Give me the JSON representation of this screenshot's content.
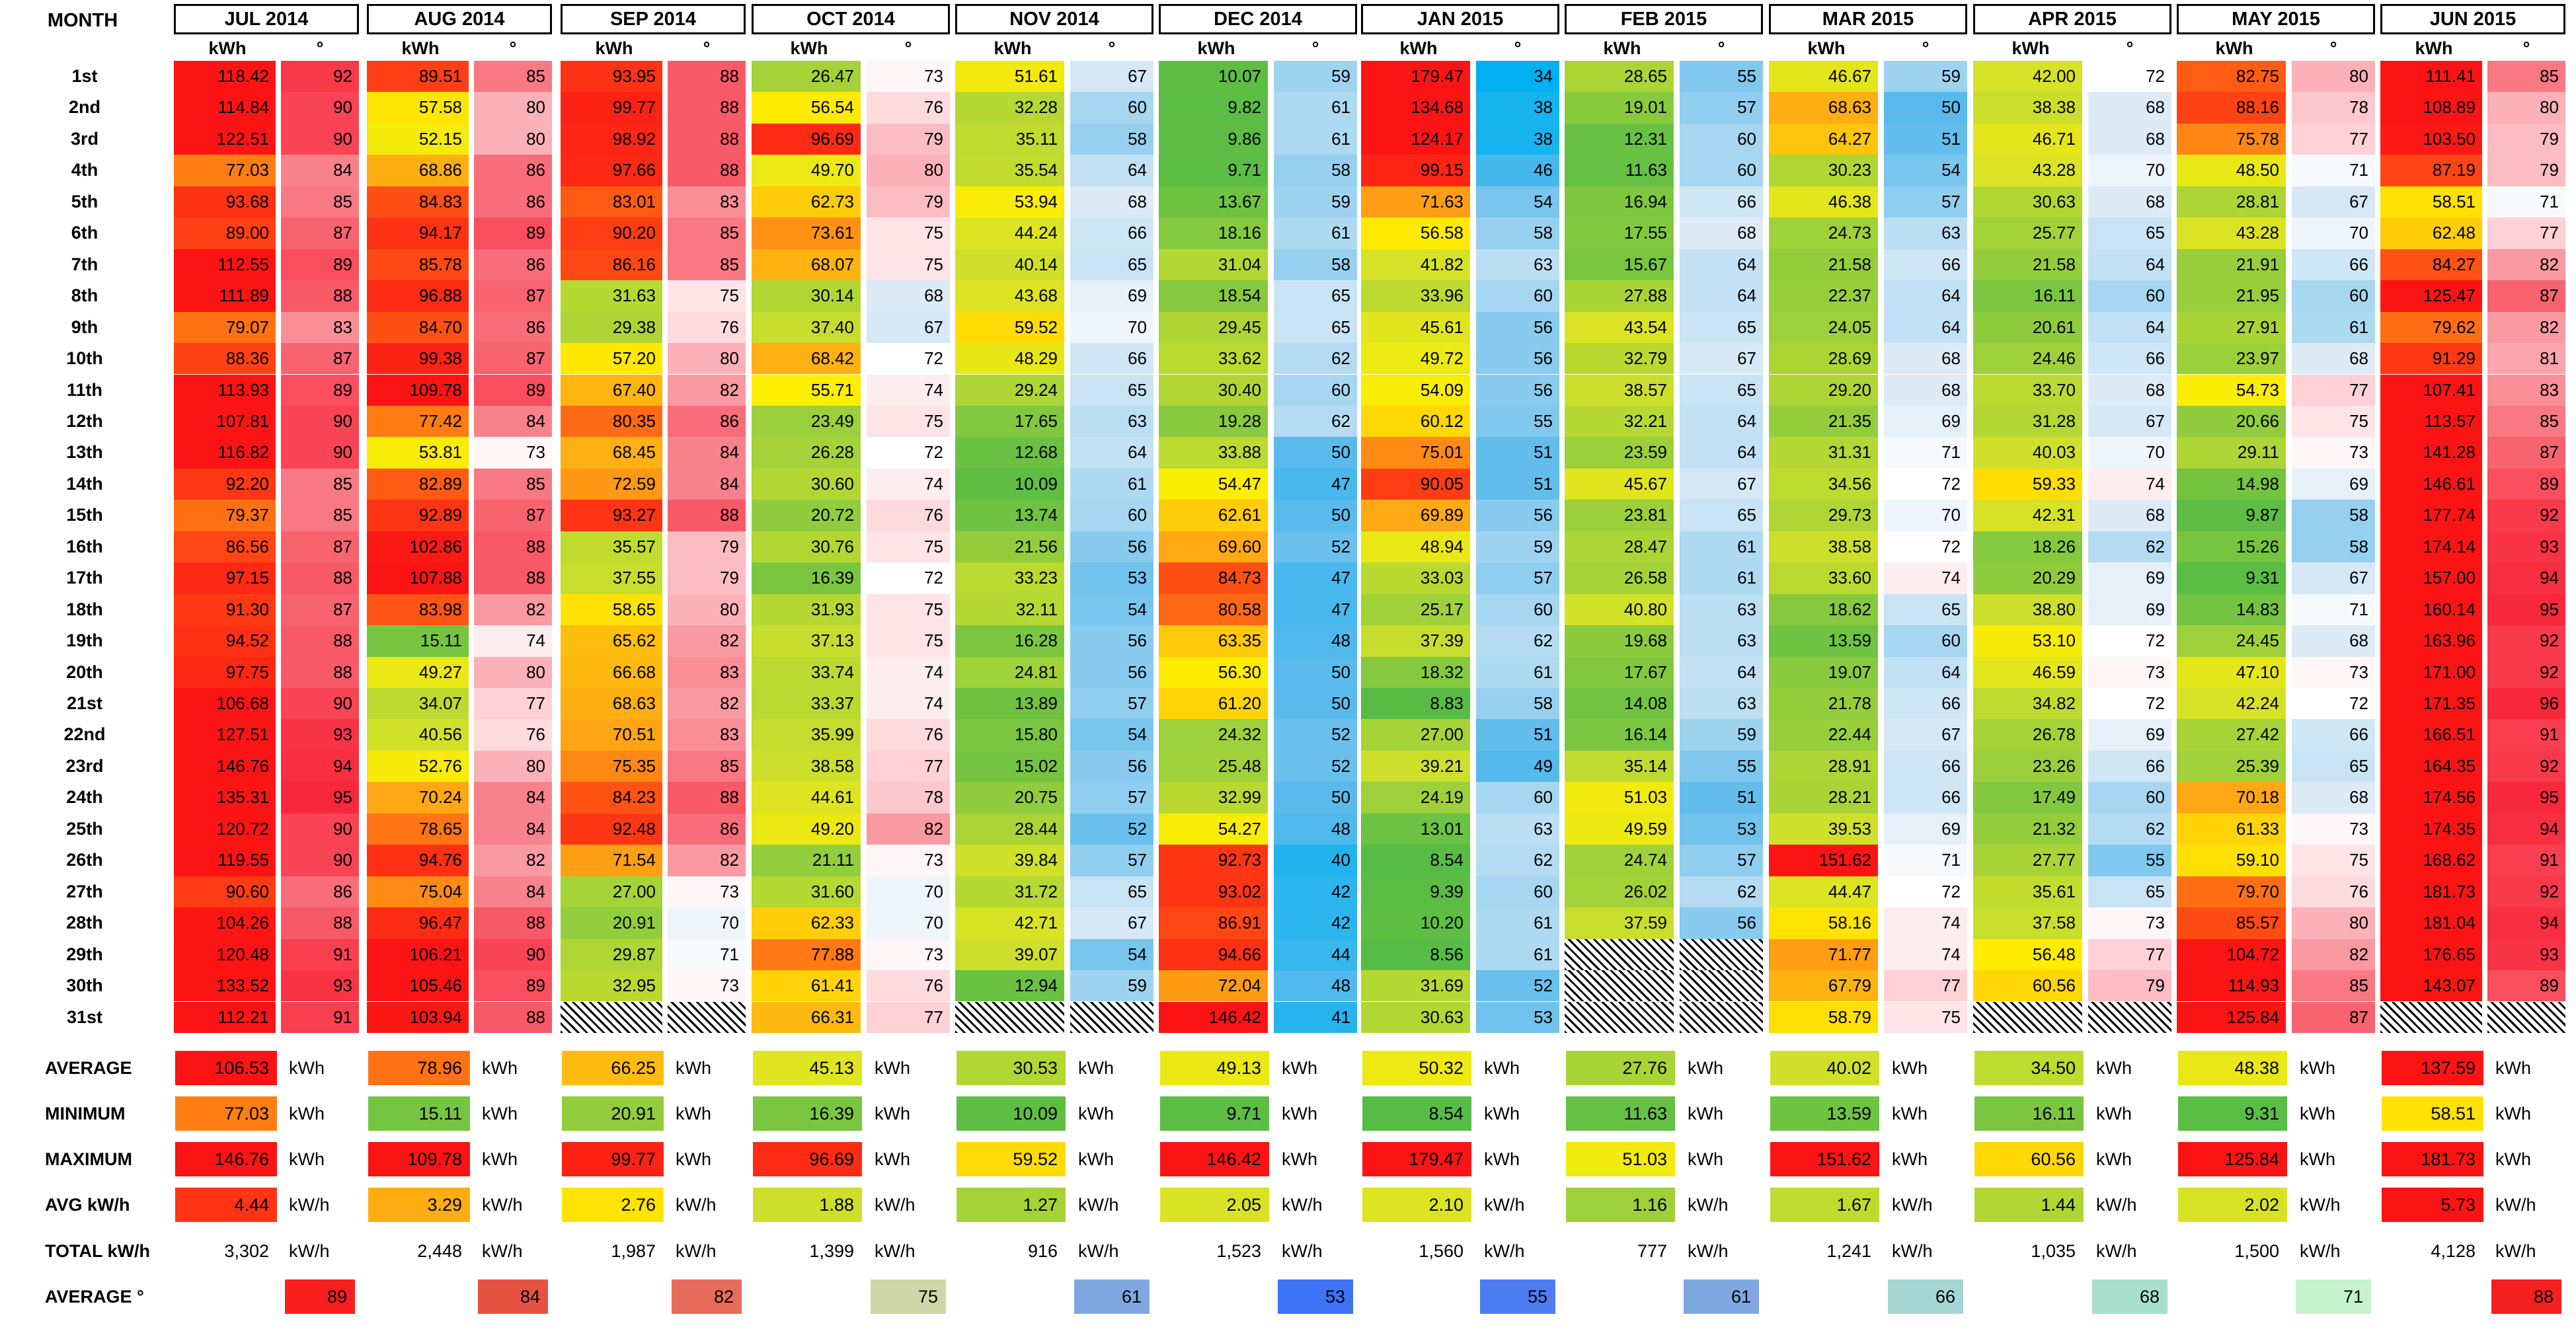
{
  "header": {
    "month_label": "MONTH",
    "kwh_label": "kWh",
    "degree_label": "°"
  },
  "days": [
    "1st",
    "2nd",
    "3rd",
    "4th",
    "5th",
    "6th",
    "7th",
    "8th",
    "9th",
    "10th",
    "11th",
    "12th",
    "13th",
    "14th",
    "15th",
    "16th",
    "17th",
    "18th",
    "19th",
    "20th",
    "21st",
    "22nd",
    "23rd",
    "24th",
    "25th",
    "26th",
    "27th",
    "28th",
    "29th",
    "30th",
    "31st"
  ],
  "months": [
    {
      "name": "JUL 2014",
      "kwh": [
        "118.42",
        "114.84",
        "122.51",
        "77.03",
        "93.68",
        "89.00",
        "112.55",
        "111.89",
        "79.07",
        "88.36",
        "113.93",
        "107.81",
        "116.82",
        "92.20",
        "79.37",
        "86.56",
        "97.15",
        "91.30",
        "94.52",
        "97.75",
        "106.68",
        "127.51",
        "146.76",
        "135.31",
        "120.72",
        "119.55",
        "90.60",
        "104.26",
        "120.48",
        "133.52",
        "112.21"
      ],
      "temp": [
        "92",
        "90",
        "90",
        "84",
        "85",
        "87",
        "89",
        "88",
        "83",
        "87",
        "89",
        "90",
        "90",
        "85",
        "85",
        "87",
        "88",
        "87",
        "88",
        "88",
        "90",
        "93",
        "94",
        "95",
        "90",
        "90",
        "86",
        "88",
        "91",
        "93",
        "91"
      ]
    },
    {
      "name": "AUG 2014",
      "kwh": [
        "89.51",
        "57.58",
        "52.15",
        "68.86",
        "84.83",
        "94.17",
        "85.78",
        "96.88",
        "84.70",
        "99.38",
        "109.78",
        "77.42",
        "53.81",
        "82.89",
        "92.89",
        "102.86",
        "107.88",
        "83.98",
        "15.11",
        "49.27",
        "34.07",
        "40.56",
        "52.76",
        "70.24",
        "78.65",
        "94.76",
        "75.04",
        "96.47",
        "106.21",
        "105.46",
        "103.94"
      ],
      "temp": [
        "85",
        "80",
        "80",
        "86",
        "86",
        "89",
        "86",
        "87",
        "86",
        "87",
        "89",
        "84",
        "73",
        "85",
        "87",
        "88",
        "88",
        "82",
        "74",
        "80",
        "77",
        "76",
        "80",
        "84",
        "84",
        "82",
        "84",
        "88",
        "90",
        "89",
        "88"
      ]
    },
    {
      "name": "SEP 2014",
      "kwh": [
        "93.95",
        "99.77",
        "98.92",
        "97.66",
        "83.01",
        "90.20",
        "86.16",
        "31.63",
        "29.38",
        "57.20",
        "67.40",
        "80.35",
        "68.45",
        "72.59",
        "93.27",
        "35.57",
        "37.55",
        "58.65",
        "65.62",
        "66.68",
        "68.63",
        "70.51",
        "75.35",
        "84.23",
        "92.48",
        "71.54",
        "27.00",
        "20.91",
        "29.87",
        "32.95",
        ""
      ],
      "temp": [
        "88",
        "88",
        "88",
        "88",
        "83",
        "85",
        "85",
        "75",
        "76",
        "80",
        "82",
        "86",
        "84",
        "84",
        "88",
        "79",
        "79",
        "80",
        "82",
        "83",
        "82",
        "83",
        "85",
        "88",
        "86",
        "82",
        "73",
        "70",
        "71",
        "73",
        ""
      ]
    },
    {
      "name": "OCT 2014",
      "kwh": [
        "26.47",
        "56.54",
        "96.69",
        "49.70",
        "62.73",
        "73.61",
        "68.07",
        "30.14",
        "37.40",
        "68.42",
        "55.71",
        "23.49",
        "26.28",
        "30.60",
        "20.72",
        "30.76",
        "16.39",
        "31.93",
        "37.13",
        "33.74",
        "33.37",
        "35.99",
        "38.58",
        "44.61",
        "49.20",
        "21.11",
        "31.60",
        "62.33",
        "77.88",
        "61.41",
        "66.31"
      ],
      "temp": [
        "73",
        "76",
        "79",
        "80",
        "79",
        "75",
        "75",
        "68",
        "67",
        "72",
        "74",
        "75",
        "72",
        "74",
        "76",
        "75",
        "72",
        "75",
        "75",
        "74",
        "74",
        "76",
        "77",
        "78",
        "82",
        "73",
        "70",
        "70",
        "73",
        "76",
        "77"
      ]
    },
    {
      "name": "NOV 2014",
      "kwh": [
        "51.61",
        "32.28",
        "35.11",
        "35.54",
        "53.94",
        "44.24",
        "40.14",
        "43.68",
        "59.52",
        "48.29",
        "29.24",
        "17.65",
        "12.68",
        "10.09",
        "13.74",
        "21.56",
        "33.23",
        "32.11",
        "16.28",
        "24.81",
        "13.89",
        "15.80",
        "15.02",
        "20.75",
        "28.44",
        "39.84",
        "31.72",
        "42.71",
        "39.07",
        "12.94",
        ""
      ],
      "temp": [
        "67",
        "60",
        "58",
        "64",
        "68",
        "66",
        "65",
        "69",
        "70",
        "66",
        "65",
        "63",
        "64",
        "61",
        "60",
        "56",
        "53",
        "54",
        "56",
        "56",
        "57",
        "54",
        "56",
        "57",
        "52",
        "57",
        "65",
        "67",
        "54",
        "59",
        ""
      ]
    },
    {
      "name": "DEC 2014",
      "kwh": [
        "10.07",
        "9.82",
        "9.86",
        "9.71",
        "13.67",
        "18.16",
        "31.04",
        "18.54",
        "29.45",
        "33.62",
        "30.40",
        "19.28",
        "33.88",
        "54.47",
        "62.61",
        "69.60",
        "84.73",
        "80.58",
        "63.35",
        "56.30",
        "61.20",
        "24.32",
        "25.48",
        "32.99",
        "54.27",
        "92.73",
        "93.02",
        "86.91",
        "94.66",
        "72.04",
        "146.42"
      ],
      "temp": [
        "59",
        "61",
        "61",
        "58",
        "59",
        "61",
        "58",
        "65",
        "65",
        "62",
        "60",
        "62",
        "50",
        "47",
        "50",
        "52",
        "47",
        "47",
        "48",
        "50",
        "50",
        "52",
        "52",
        "50",
        "48",
        "40",
        "42",
        "42",
        "44",
        "48",
        "41"
      ]
    },
    {
      "name": "JAN 2015",
      "kwh": [
        "179.47",
        "134.68",
        "124.17",
        "99.15",
        "71.63",
        "56.58",
        "41.82",
        "33.96",
        "45.61",
        "49.72",
        "54.09",
        "60.12",
        "75.01",
        "90.05",
        "69.89",
        "48.94",
        "33.03",
        "25.17",
        "37.39",
        "18.32",
        "8.83",
        "27.00",
        "39.21",
        "24.19",
        "13.01",
        "8.54",
        "9.39",
        "10.20",
        "8.56",
        "31.69",
        "30.63"
      ],
      "temp": [
        "34",
        "38",
        "38",
        "46",
        "54",
        "58",
        "63",
        "60",
        "56",
        "56",
        "56",
        "55",
        "51",
        "51",
        "56",
        "59",
        "57",
        "60",
        "62",
        "61",
        "58",
        "51",
        "49",
        "60",
        "63",
        "62",
        "60",
        "61",
        "61",
        "52",
        "53"
      ]
    },
    {
      "name": "FEB 2015",
      "kwh": [
        "28.65",
        "19.01",
        "12.31",
        "11.63",
        "16.94",
        "17.55",
        "15.67",
        "27.88",
        "43.54",
        "32.79",
        "38.57",
        "32.21",
        "23.59",
        "45.67",
        "23.81",
        "28.47",
        "26.58",
        "40.80",
        "19.68",
        "17.67",
        "14.08",
        "16.14",
        "35.14",
        "51.03",
        "49.59",
        "24.74",
        "26.02",
        "37.59",
        "",
        "",
        ""
      ],
      "temp": [
        "55",
        "57",
        "60",
        "60",
        "66",
        "68",
        "64",
        "64",
        "65",
        "67",
        "65",
        "64",
        "64",
        "67",
        "65",
        "61",
        "61",
        "63",
        "63",
        "64",
        "63",
        "59",
        "55",
        "51",
        "53",
        "57",
        "62",
        "56",
        "",
        "",
        ""
      ]
    },
    {
      "name": "MAR 2015",
      "kwh": [
        "46.67",
        "68.63",
        "64.27",
        "30.23",
        "46.38",
        "24.73",
        "21.58",
        "22.37",
        "24.05",
        "28.69",
        "29.20",
        "21.35",
        "31.31",
        "34.56",
        "29.73",
        "38.58",
        "33.60",
        "18.62",
        "13.59",
        "19.07",
        "21.78",
        "22.44",
        "28.91",
        "28.21",
        "39.53",
        "151.62",
        "44.47",
        "58.16",
        "71.77",
        "67.79",
        "58.79"
      ],
      "temp": [
        "59",
        "50",
        "51",
        "54",
        "57",
        "63",
        "66",
        "64",
        "64",
        "68",
        "68",
        "69",
        "71",
        "72",
        "70",
        "72",
        "74",
        "65",
        "60",
        "64",
        "66",
        "67",
        "66",
        "66",
        "69",
        "71",
        "72",
        "74",
        "74",
        "77",
        "75"
      ]
    },
    {
      "name": "APR 2015",
      "kwh": [
        "42.00",
        "38.38",
        "46.71",
        "43.28",
        "30.63",
        "25.77",
        "21.58",
        "16.11",
        "20.61",
        "24.46",
        "33.70",
        "31.28",
        "40.03",
        "59.33",
        "42.31",
        "18.26",
        "20.29",
        "38.80",
        "53.10",
        "46.59",
        "34.82",
        "26.78",
        "23.26",
        "17.49",
        "21.32",
        "27.77",
        "35.61",
        "37.58",
        "56.48",
        "60.56",
        ""
      ],
      "temp": [
        "72",
        "68",
        "68",
        "70",
        "68",
        "65",
        "64",
        "60",
        "64",
        "66",
        "68",
        "67",
        "70",
        "74",
        "68",
        "62",
        "69",
        "69",
        "72",
        "73",
        "72",
        "69",
        "66",
        "60",
        "62",
        "55",
        "65",
        "73",
        "77",
        "79",
        ""
      ]
    },
    {
      "name": "MAY 2015",
      "kwh": [
        "82.75",
        "88.16",
        "75.78",
        "48.50",
        "28.81",
        "43.28",
        "21.91",
        "21.95",
        "27.91",
        "23.97",
        "54.73",
        "20.66",
        "29.11",
        "14.98",
        "9.87",
        "15.26",
        "9.31",
        "14.83",
        "24.45",
        "47.10",
        "42.24",
        "27.42",
        "25.39",
        "70.18",
        "61.33",
        "59.10",
        "79.70",
        "85.57",
        "104.72",
        "114.93",
        "125.84"
      ],
      "temp": [
        "80",
        "78",
        "77",
        "71",
        "67",
        "70",
        "66",
        "60",
        "61",
        "68",
        "77",
        "75",
        "73",
        "69",
        "58",
        "58",
        "67",
        "71",
        "68",
        "73",
        "72",
        "66",
        "65",
        "68",
        "73",
        "75",
        "76",
        "80",
        "82",
        "85",
        "87"
      ]
    },
    {
      "name": "JUN 2015",
      "kwh": [
        "111.41",
        "108.89",
        "103.50",
        "87.19",
        "58.51",
        "62.48",
        "84.27",
        "125.47",
        "79.62",
        "91.29",
        "107.41",
        "113.57",
        "141.28",
        "146.61",
        "177.74",
        "174.14",
        "157.00",
        "160.14",
        "163.96",
        "171.00",
        "171.35",
        "166.51",
        "164.35",
        "174.56",
        "174.35",
        "168.62",
        "181.73",
        "181.04",
        "176.65",
        "143.07",
        ""
      ],
      "temp": [
        "85",
        "80",
        "79",
        "79",
        "71",
        "77",
        "82",
        "87",
        "82",
        "81",
        "83",
        "85",
        "87",
        "89",
        "92",
        "93",
        "94",
        "95",
        "92",
        "92",
        "96",
        "91",
        "92",
        "95",
        "94",
        "91",
        "92",
        "94",
        "93",
        "89",
        ""
      ]
    }
  ],
  "summary": {
    "labels": [
      "AVERAGE",
      "MINIMUM",
      "MAXIMUM",
      "AVG kW/h",
      "TOTAL kW/h",
      "AVERAGE °"
    ],
    "unit_kwh": "kWh",
    "unit_kwh_h": "kW/h",
    "average": [
      "106.53",
      "78.96",
      "66.25",
      "45.13",
      "30.53",
      "49.13",
      "50.32",
      "27.76",
      "40.02",
      "34.50",
      "48.38",
      "137.59"
    ],
    "minimum": [
      "77.03",
      "15.11",
      "20.91",
      "16.39",
      "10.09",
      "9.71",
      "8.54",
      "11.63",
      "13.59",
      "16.11",
      "9.31",
      "58.51"
    ],
    "maximum": [
      "146.76",
      "109.78",
      "99.77",
      "96.69",
      "59.52",
      "146.42",
      "179.47",
      "51.03",
      "151.62",
      "60.56",
      "125.84",
      "181.73"
    ],
    "avg_kwh_h": [
      "4.44",
      "3.29",
      "2.76",
      "1.88",
      "1.27",
      "2.05",
      "2.10",
      "1.16",
      "1.67",
      "1.44",
      "2.02",
      "5.73"
    ],
    "total_kwh_h": [
      "3,302",
      "2,448",
      "1,987",
      "1,399",
      "916",
      "1,523",
      "1,560",
      "777",
      "1,241",
      "1,035",
      "1,500",
      "4,128"
    ],
    "avg_temp": [
      "89",
      "84",
      "82",
      "75",
      "61",
      "53",
      "55",
      "61",
      "66",
      "68",
      "71",
      "88"
    ],
    "avg_temp_colors": [
      "#fa1e1e",
      "#e65343",
      "#e76c5b",
      "#cfd7a8",
      "#7fa8e0",
      "#3d72f5",
      "#4e7cf3",
      "#7fa8e0",
      "#a6d6d3",
      "#a8e0cd",
      "#c6f3cb",
      "#f42020"
    ]
  }
}
